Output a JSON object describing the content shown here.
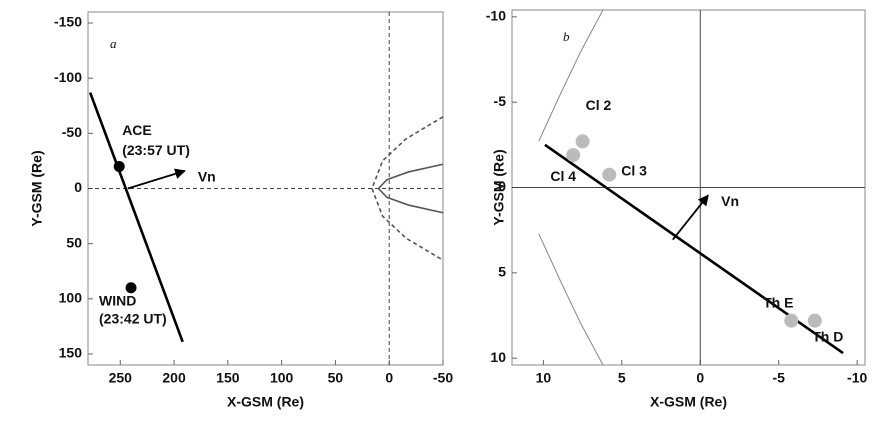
{
  "chart_data": [
    {
      "type": "scatter",
      "panel_label": "a",
      "x_label": "X-GSM (Re)",
      "y_label": "Y-GSM (Re)",
      "xlim": [
        280,
        -50
      ],
      "ylim": [
        160,
        -160
      ],
      "xticks": [
        250,
        200,
        150,
        100,
        50,
        0,
        -50
      ],
      "yticks": [
        -150,
        -100,
        -50,
        0,
        50,
        100,
        150
      ],
      "zero_lines": "dashed",
      "points": [
        {
          "name": "ACE",
          "time": "(23:57 UT)",
          "x": 251,
          "y": -20,
          "color": "#000000",
          "label_side": "above-right"
        },
        {
          "name": "WIND",
          "time": "(23:42 UT)",
          "x": 240,
          "y": 90,
          "color": "#000000",
          "label_side": "below"
        }
      ],
      "lines": [
        {
          "x": [
            278,
            192
          ],
          "y": [
            -87,
            139
          ],
          "color": "#000000",
          "style": "solid",
          "weight": "heavy"
        },
        {
          "x": [
            -50,
            -15.6,
            6.2,
            16,
            6.2,
            -15.6,
            -50
          ],
          "y": [
            -65,
            -45,
            -25,
            0,
            25,
            45,
            65
          ],
          "color": "#555555",
          "style": "dashed",
          "weight": "medium"
        },
        {
          "x": [
            -50,
            -17.9,
            2.1,
            10,
            2.1,
            -17.9,
            -50
          ],
          "y": [
            -22,
            -15,
            -8,
            0,
            8,
            15,
            22
          ],
          "color": "#555555",
          "style": "solid",
          "weight": "medium"
        }
      ],
      "arrows": [
        {
          "label": "Vn",
          "x": [
            243,
            190
          ],
          "y": [
            0,
            -16
          ],
          "color": "#000000"
        }
      ]
    },
    {
      "type": "scatter",
      "panel_label": "b",
      "x_label": "X-GSM (Re)",
      "y_label": "Y-GSM (Re)",
      "xlim": [
        12,
        -10.5
      ],
      "ylim": [
        10.4,
        -10.4
      ],
      "xticks": [
        10,
        5,
        0,
        -5,
        -10
      ],
      "yticks": [
        -10,
        -5,
        0,
        5,
        10
      ],
      "zero_lines": "solid",
      "points": [
        {
          "name": "Cl 2",
          "x": 7.5,
          "y": -2.7,
          "color": "#bbbbbb",
          "label_side": "above-right"
        },
        {
          "name": "Cl 4",
          "x": 8.1,
          "y": -1.9,
          "color": "#bbbbbb",
          "label_side": "below-left"
        },
        {
          "name": "Cl 3",
          "x": 5.8,
          "y": -0.75,
          "color": "#bbbbbb",
          "label_side": "right"
        },
        {
          "name": "Th E",
          "x": -5.8,
          "y": 7.8,
          "color": "#bbbbbb",
          "label_side": "above-left"
        },
        {
          "name": "Th D",
          "x": -7.3,
          "y": 7.8,
          "color": "#bbbbbb",
          "label_side": "below-right"
        }
      ],
      "lines": [
        {
          "x": [
            9.9,
            -9.1
          ],
          "y": [
            -2.5,
            9.7
          ],
          "color": "#000000",
          "style": "solid",
          "weight": "heavy"
        },
        {
          "x": [
            6.2,
            7.6,
            8.9,
            9.9,
            10.3
          ],
          "y": [
            -10.4,
            -8,
            -5.5,
            -3.5,
            -2.7
          ],
          "color": "#888888",
          "style": "solid",
          "weight": "thin"
        },
        {
          "x": [
            10.3,
            9.9,
            8.9,
            7.6,
            6.2
          ],
          "y": [
            2.7,
            3.5,
            5.5,
            8,
            10.4
          ],
          "color": "#888888",
          "style": "solid",
          "weight": "thin"
        }
      ],
      "arrows": [
        {
          "label": "Vn",
          "x": [
            1.75,
            -0.5
          ],
          "y": [
            3.06,
            0.46
          ],
          "color": "#000000"
        }
      ]
    }
  ]
}
